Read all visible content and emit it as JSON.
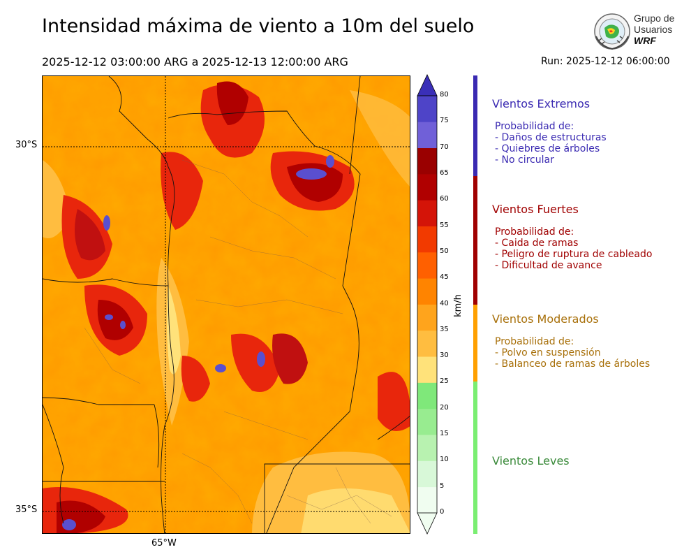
{
  "header": {
    "title": "Intensidad máxima de viento a 10m del suelo",
    "period": "2025-12-12 03:00:00 ARG  a  2025-12-13 12:00:00 ARG",
    "run": "Run: 2025-12-12 06:00:00"
  },
  "logo": {
    "line1": "Grupo de",
    "line2": "Usuarios",
    "line3": "WRF"
  },
  "map": {
    "lat_labels": [
      "30°S",
      "35°S"
    ],
    "lon_labels": [
      "65°W"
    ],
    "wind_extreme_color": "#5a4fcf",
    "dominant_colors": [
      "#ff9a00",
      "#ff6a00",
      "#e8260c",
      "#c01010",
      "#ffbd40",
      "#ffe27a"
    ]
  },
  "colorbar": {
    "unit": "km/h",
    "ticks": [
      "0",
      "5",
      "10",
      "15",
      "20",
      "25",
      "30",
      "35",
      "40",
      "45",
      "50",
      "55",
      "60",
      "65",
      "70",
      "75",
      "80"
    ],
    "bin_colors": [
      "#f0fdf0",
      "#d8f8d8",
      "#b8f2b0",
      "#98ec90",
      "#7fe87a",
      "#ffe27a",
      "#ffbd40",
      "#ffa41c",
      "#ff8400",
      "#ff6000",
      "#f23a00",
      "#d41408",
      "#b00000",
      "#9a0000",
      "#7060d8",
      "#4e44c8",
      "#3a2fb8"
    ]
  },
  "categories": [
    {
      "title": "Vientos Extremos",
      "color": "#3a2ab2",
      "probability_label": "Probabilidad de:",
      "items": [
        "- Daños de estructuras",
        "- Quiebres de árboles",
        "- No circular"
      ]
    },
    {
      "title": "Vientos Fuertes",
      "color": "#a00000",
      "probability_label": "Probabilidad de:",
      "items": [
        "- Caida de ramas",
        "- Peligro de ruptura de cableado",
        "- Dificultad de avance"
      ]
    },
    {
      "title": "Vientos Moderados",
      "color": "#a8700a",
      "bar_color": "#ffa000",
      "probability_label": "Probabilidad de:",
      "items": [
        "- Polvo en suspensión",
        "- Balanceo de ramas de árboles"
      ]
    },
    {
      "title": "Vientos Leves",
      "color": "#3a8a3a",
      "bar_color": "#7aee72",
      "probability_label": "",
      "items": []
    }
  ]
}
